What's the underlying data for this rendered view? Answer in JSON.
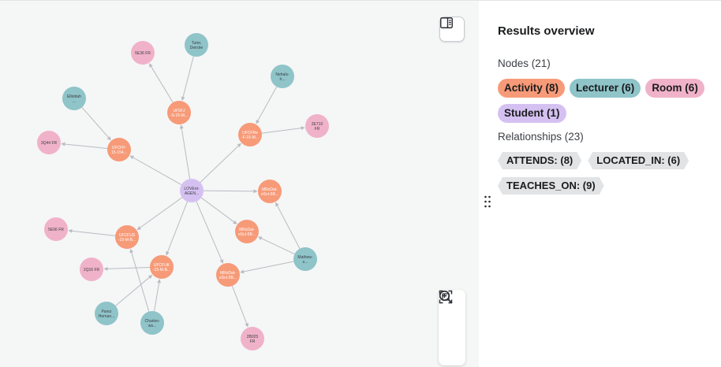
{
  "colors": {
    "activity": "#f79a78",
    "lecturer": "#8fc4c9",
    "room": "#f0b2c9",
    "student": "#d5c1f1",
    "edge": "#b8bcc1"
  },
  "graph": {
    "nodes": [
      {
        "id": "student",
        "type": "student",
        "label": [
          "LOVEnt-",
          "AGEN..."
        ]
      },
      {
        "id": "a1",
        "type": "activity",
        "label": [
          "UF5FJ",
          "-S-15-M..."
        ]
      },
      {
        "id": "a2",
        "type": "activity",
        "label": [
          "UFCFP-",
          "15-154..."
        ]
      },
      {
        "id": "a3",
        "type": "activity",
        "label": [
          "UFCFRe",
          "-F-15-M..."
        ]
      },
      {
        "id": "a4",
        "type": "activity",
        "label": [
          "MRxDat-",
          "eSct-5B..."
        ]
      },
      {
        "id": "a5",
        "type": "activity",
        "label": [
          "UFCFUS",
          "-15-M-B..."
        ]
      },
      {
        "id": "a6",
        "type": "activity",
        "label": [
          "MRxDat-",
          "eSct-5B..."
        ]
      },
      {
        "id": "a7",
        "type": "activity",
        "label": [
          "UFCFUK",
          "-15-M-B..."
        ]
      },
      {
        "id": "a8",
        "type": "activity",
        "label": [
          "MRxDat-",
          "eSct-5B..."
        ]
      },
      {
        "id": "l1",
        "type": "lecturer",
        "label": [
          "Tutor,",
          "Deirdre"
        ]
      },
      {
        "id": "l2",
        "type": "lecturer",
        "label": [
          "Elliottah",
          "..."
        ]
      },
      {
        "id": "l3",
        "type": "lecturer",
        "label": [
          "Nehals-",
          "h..."
        ]
      },
      {
        "id": "l4",
        "type": "lecturer",
        "label": [
          "Mathew-",
          "s..."
        ]
      },
      {
        "id": "l5",
        "type": "lecturer",
        "label": [
          "Parez",
          "Hernan..."
        ]
      },
      {
        "id": "l6",
        "type": "lecturer",
        "label": [
          "Charles-",
          "ws..."
        ]
      },
      {
        "id": "r1",
        "type": "room",
        "label": [
          "5E36 FR"
        ]
      },
      {
        "id": "r2",
        "type": "room",
        "label": [
          "3Q44 FR"
        ]
      },
      {
        "id": "r3",
        "type": "room",
        "label": [
          "2E710",
          "FR"
        ]
      },
      {
        "id": "r4",
        "type": "room",
        "label": [
          "5E06 FR"
        ]
      },
      {
        "id": "r5",
        "type": "room",
        "label": [
          "2Q16 FR"
        ]
      },
      {
        "id": "r6",
        "type": "room",
        "label": [
          "2B025",
          "FR"
        ]
      }
    ],
    "edges": [
      [
        "student",
        "a1"
      ],
      [
        "student",
        "a2"
      ],
      [
        "student",
        "a3"
      ],
      [
        "student",
        "a4"
      ],
      [
        "student",
        "a5"
      ],
      [
        "student",
        "a6"
      ],
      [
        "student",
        "a7"
      ],
      [
        "student",
        "a8"
      ],
      [
        "a1",
        "r1"
      ],
      [
        "a2",
        "r2"
      ],
      [
        "a3",
        "r3"
      ],
      [
        "a5",
        "r4"
      ],
      [
        "a7",
        "r5"
      ],
      [
        "a8",
        "r6"
      ],
      [
        "l1",
        "a1"
      ],
      [
        "l2",
        "a2"
      ],
      [
        "l3",
        "a3"
      ],
      [
        "l4",
        "a4"
      ],
      [
        "l4",
        "a6"
      ],
      [
        "l4",
        "a8"
      ],
      [
        "l5",
        "a7"
      ],
      [
        "l6",
        "a7"
      ],
      [
        "l6",
        "a5"
      ]
    ]
  },
  "panel": {
    "title": "Results overview",
    "nodes_label": "Nodes (21)",
    "node_chips": [
      {
        "label": "Activity (8)",
        "color": "#f79a78"
      },
      {
        "label": "Lecturer (6)",
        "color": "#8fc4c9"
      },
      {
        "label": "Room (6)",
        "color": "#f0b2c9"
      },
      {
        "label": "Student (1)",
        "color": "#d5c1f1"
      }
    ],
    "relationships_label": "Relationships (23)",
    "rel_chips": [
      "ATTENDS: (8)",
      "LOCATED_IN: (6)",
      "TEACHES_ON: (9)"
    ]
  },
  "icons": {
    "panel_toggle": "sidebar-panel-icon",
    "zoom_in": "zoom-in-icon",
    "zoom_out": "zoom-out-icon",
    "fit": "fit-to-screen-icon",
    "drag": "drag-handle-icon"
  }
}
